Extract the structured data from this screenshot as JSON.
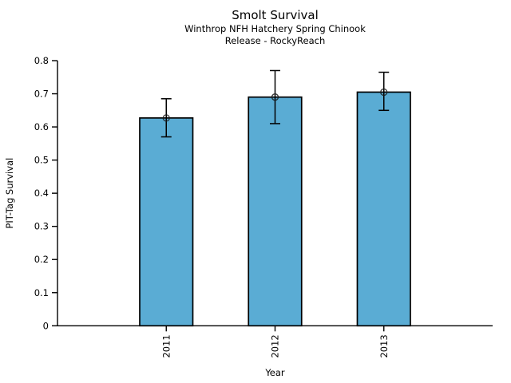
{
  "page": {
    "background_color": "#ffffff"
  },
  "chart_data": {
    "type": "bar",
    "title": "Smolt Survival",
    "subtitle1": "Winthrop NFH Hatchery Spring Chinook",
    "subtitle2": "Release - RockyReach",
    "xlabel": "Year",
    "ylabel": "PIT-Tag Survival",
    "categories": [
      "2011",
      "2012",
      "2013"
    ],
    "values": [
      0.627,
      0.69,
      0.705
    ],
    "error_low": [
      0.57,
      0.61,
      0.65
    ],
    "error_high": [
      0.685,
      0.77,
      0.765
    ],
    "ylim": [
      0,
      0.8
    ],
    "yticks": [
      0,
      0.1,
      0.2,
      0.3,
      0.4,
      0.5,
      0.6,
      0.7,
      0.8
    ],
    "ytick_labels": [
      "0",
      "0.1",
      "0.2",
      "0.3",
      "0.4",
      "0.5",
      "0.6",
      "0.7",
      "0.8"
    ],
    "grid": false,
    "legend": "none",
    "marker": "open-circle",
    "bar_color": "#5AACD4",
    "bar_edge_color": "#000000",
    "error_bar_color": "#000000",
    "axis_color": "#000000"
  }
}
